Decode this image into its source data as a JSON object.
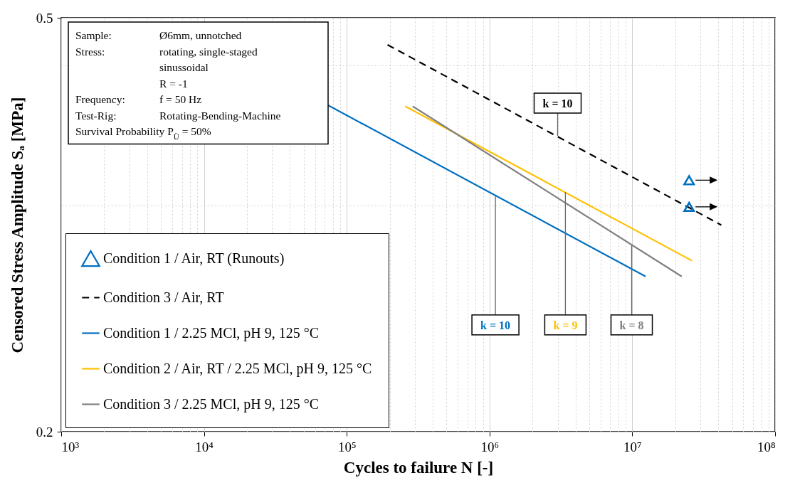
{
  "chart_data": {
    "type": "line",
    "xlabel": "Cycles to failure N [-]",
    "ylabel": "Censored Stress Amplitude Sₐ [MPa]",
    "log": "xy",
    "grid": true,
    "legend": "bottom left",
    "xlim": [
      1000,
      100000000
    ],
    "xticks": [
      {
        "value": 1000,
        "label": "10³"
      },
      {
        "value": 2000,
        "label": null
      },
      {
        "value": 3000,
        "label": null
      },
      {
        "value": 4000,
        "label": null
      },
      {
        "value": 5000,
        "label": null
      },
      {
        "value": 6000,
        "label": null
      },
      {
        "value": 7000,
        "label": null
      },
      {
        "value": 8000,
        "label": null
      },
      {
        "value": 9000,
        "label": null
      },
      {
        "value": 10000,
        "label": "10⁴"
      },
      {
        "value": 20000,
        "label": null
      },
      {
        "value": 30000,
        "label": null
      },
      {
        "value": 40000,
        "label": null
      },
      {
        "value": 50000,
        "label": null
      },
      {
        "value": 60000,
        "label": null
      },
      {
        "value": 70000,
        "label": null
      },
      {
        "value": 80000,
        "label": null
      },
      {
        "value": 90000,
        "label": null
      },
      {
        "value": 100000,
        "label": "10⁵"
      },
      {
        "value": 200000,
        "label": null
      },
      {
        "value": 300000,
        "label": null
      },
      {
        "value": 400000,
        "label": null
      },
      {
        "value": 500000,
        "label": null
      },
      {
        "value": 600000,
        "label": null
      },
      {
        "value": 700000,
        "label": null
      },
      {
        "value": 800000,
        "label": null
      },
      {
        "value": 900000,
        "label": null
      },
      {
        "value": 1000000,
        "label": "10⁶"
      },
      {
        "value": 2000000,
        "label": null
      },
      {
        "value": 3000000,
        "label": null
      },
      {
        "value": 4000000,
        "label": null
      },
      {
        "value": 5000000,
        "label": null
      },
      {
        "value": 6000000,
        "label": null
      },
      {
        "value": 7000000,
        "label": null
      },
      {
        "value": 8000000,
        "label": null
      },
      {
        "value": 9000000,
        "label": null
      },
      {
        "value": 10000000,
        "label": "10⁷"
      },
      {
        "value": 20000000,
        "label": null
      },
      {
        "value": 30000000,
        "label": null
      },
      {
        "value": 40000000,
        "label": null
      },
      {
        "value": 50000000,
        "label": null
      },
      {
        "value": 60000000,
        "label": null
      },
      {
        "value": 70000000,
        "label": null
      },
      {
        "value": 80000000,
        "label": null
      },
      {
        "value": 90000000,
        "label": null
      },
      {
        "value": 100000000,
        "label": "10⁸"
      }
    ],
    "ylim": [
      0.2,
      0.5
    ],
    "yticks": [
      0.2,
      {
        "value": 0.33,
        "label": null
      },
      {
        "value": 0.45,
        "label": null
      },
      0.5
    ],
    "series": [
      {
        "name": "Condition 1 / Air, RT (Runouts)",
        "type": "scatter",
        "marker": "triangle",
        "color": "#0070c0",
        "x": [
          25000000,
          25000000
        ],
        "values": [
          0.349,
          0.329
        ]
      },
      {
        "name": "Condition 3 / Air, RT",
        "line_style": "dashed",
        "color": "#000000",
        "x": [
          193000,
          42000000
        ],
        "values": [
          0.471,
          0.316
        ]
      },
      {
        "name": "Condition 1 / 2.25 MCl, pH 9, 125 °C",
        "line_style": "solid",
        "color": "#0070c0",
        "x": [
          74000,
          12400000
        ],
        "values": [
          0.412,
          0.282
        ]
      },
      {
        "name": "Condition 2 / Air, RT / 2.25 MCl, pH 9, 125 °C",
        "line_style": "solid",
        "color": "#ffc000",
        "x": [
          257000,
          26200000
        ],
        "values": [
          0.411,
          0.292
        ]
      },
      {
        "name": "Condition 3 / 2.25 MCl, pH 9, 125 °C",
        "line_style": "solid",
        "color": "#808080",
        "x": [
          290000,
          22200000
        ],
        "values": [
          0.411,
          0.282
        ]
      }
    ],
    "annotations": [
      "Sample:\tØ6mm, unnotched",
      "Stress:\trotating, single-staged",
      "\tsinussoidal",
      "\tR = -1",
      "Frequency:\tf = 50 Hz",
      "Test-Rig:\tRotating-Bending-Machine",
      "Survival Probability P$_{Ü}$ = 50%",
      {
        "text": "k = 10",
        "x": 3000000,
        "y": 0.385
      },
      {
        "text": "k = 10",
        "x": 1100000,
        "y": 0.337
      },
      {
        "text": "k = 9",
        "x": 3400000,
        "y": 0.34
      },
      {
        "text": "k = 8",
        "x": 9900000,
        "y": 0.302
      }
    ]
  }
}
